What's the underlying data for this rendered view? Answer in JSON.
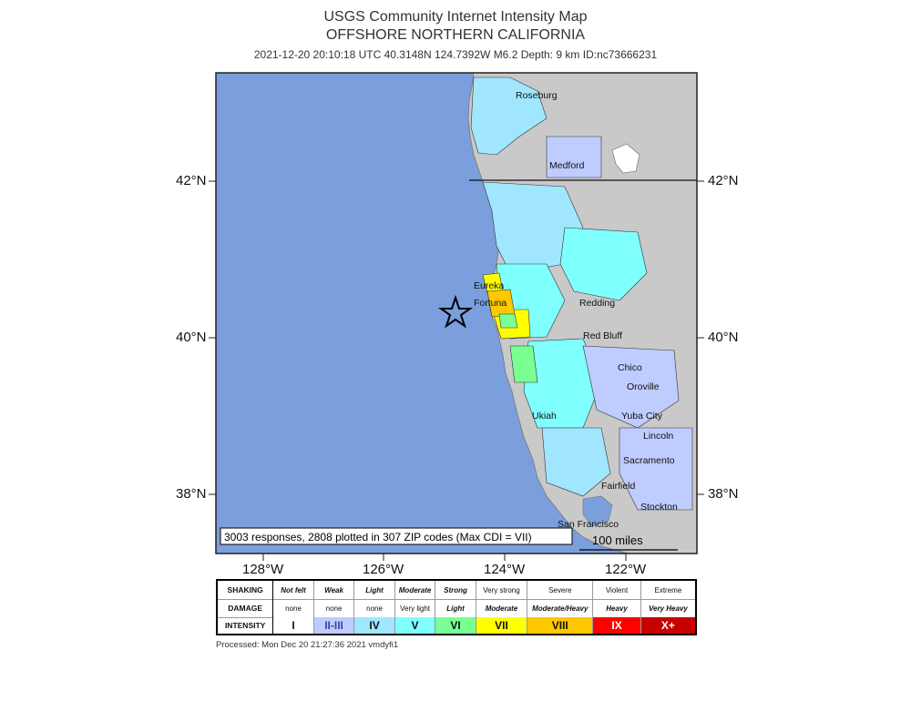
{
  "header": {
    "title": "USGS Community Internet Intensity Map",
    "region": "OFFSHORE NORTHERN CALIFORNIA",
    "event_info": "2021-12-20 20:10:18 UTC 40.3148N 124.7392W M6.2 Depth: 9 km ID:nc73666231"
  },
  "axes": {
    "lat_left": [
      "42°N",
      "40°N",
      "38°N"
    ],
    "lat_right": [
      "42°N",
      "40°N",
      "38°N"
    ],
    "lon": [
      "128°W",
      "126°W",
      "124°W",
      "122°W"
    ]
  },
  "cities": [
    "Roseburg",
    "Medford",
    "Eureka",
    "Fortuna",
    "Redding",
    "Red Bluff",
    "Chico",
    "Oroville",
    "Ukiah",
    "Yuba City",
    "Lincoln",
    "Sacramento",
    "Fairfield",
    "Stockton",
    "San Francisco"
  ],
  "map_note": "3003 responses, 2808 plotted in 307 ZIP codes (Max CDI = VII)",
  "scale_bar": "100 miles",
  "epicenter": {
    "lat": 40.3148,
    "lon": -124.7392
  },
  "legend": {
    "row_labels": [
      "SHAKING",
      "DAMAGE",
      "INTENSITY"
    ],
    "shaking": [
      "Not felt",
      "Weak",
      "Light",
      "Moderate",
      "Strong",
      "Very strong",
      "Severe",
      "Violent",
      "Extreme"
    ],
    "damage": [
      "none",
      "none",
      "none",
      "Very light",
      "Light",
      "Moderate",
      "Moderate/Heavy",
      "Heavy",
      "Very Heavy"
    ],
    "intensity": [
      "I",
      "II-III",
      "IV",
      "V",
      "VI",
      "VII",
      "VIII",
      "IX",
      "X+"
    ],
    "colors": [
      "#ffffff",
      "#bfccff",
      "#a0e6ff",
      "#80ffff",
      "#7aff93",
      "#ffff00",
      "#ffc800",
      "#ff9100",
      "#ff0000",
      "#c80000"
    ]
  },
  "processed": "Processed: Mon Dec 20 21:27:36 2021 vmdyfi1"
}
